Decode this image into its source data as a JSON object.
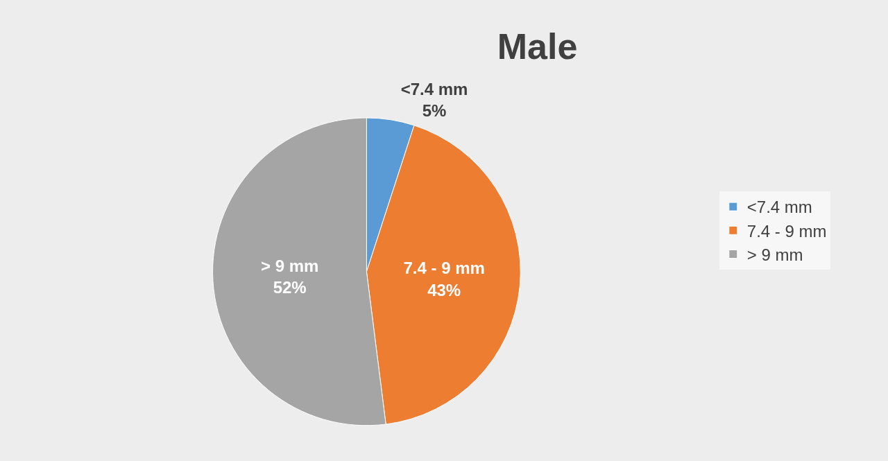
{
  "chart_data": {
    "type": "pie",
    "title": "Male",
    "categories": [
      "<7.4 mm",
      "7.4 - 9 mm",
      "> 9 mm"
    ],
    "values": [
      5,
      43,
      52
    ],
    "value_labels": [
      "5%",
      "43%",
      "52%"
    ],
    "colors": [
      "#5b9bd5",
      "#ed7d31",
      "#a5a5a5"
    ],
    "legend": "right"
  }
}
